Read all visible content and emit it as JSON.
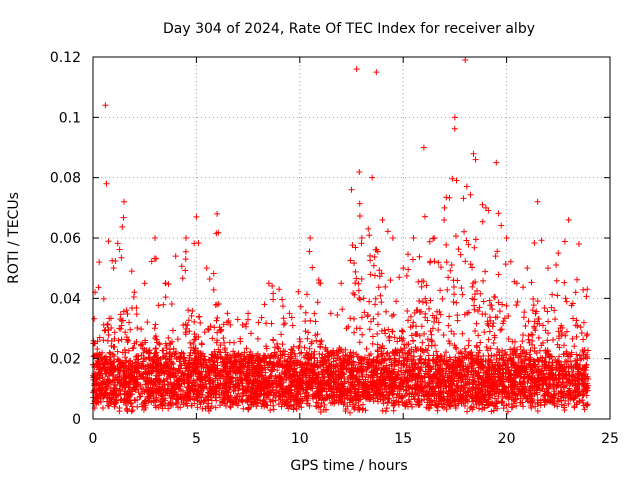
{
  "chart_data": {
    "type": "scatter",
    "title": "Day 304 of 2024, Rate Of TEC Index for receiver alby",
    "xlabel": "GPS time / hours",
    "ylabel": "ROTI / TECUs",
    "xlim": [
      0,
      25
    ],
    "ylim": [
      0,
      0.12
    ],
    "xticks": [
      0,
      5,
      10,
      15,
      20,
      25
    ],
    "yticks": [
      0,
      0.02,
      0.04,
      0.06,
      0.08,
      0.1,
      0.12
    ],
    "xtick_labels": [
      "0",
      "5",
      "10",
      "15",
      "20",
      "25"
    ],
    "ytick_labels": [
      "0",
      "0.02",
      "0.04",
      "0.06",
      "0.08",
      "0.1",
      "0.12"
    ],
    "grid": true,
    "marker": "+",
    "color": "#ff0000",
    "envelope_points": [
      {
        "x": 0.1,
        "y": 0.042
      },
      {
        "x": 0.3,
        "y": 0.052
      },
      {
        "x": 0.6,
        "y": 0.104
      },
      {
        "x": 0.65,
        "y": 0.078
      },
      {
        "x": 1.0,
        "y": 0.05
      },
      {
        "x": 1.5,
        "y": 0.072
      },
      {
        "x": 2.0,
        "y": 0.042
      },
      {
        "x": 2.5,
        "y": 0.045
      },
      {
        "x": 3.0,
        "y": 0.06
      },
      {
        "x": 3.5,
        "y": 0.045
      },
      {
        "x": 4.0,
        "y": 0.054
      },
      {
        "x": 4.5,
        "y": 0.06
      },
      {
        "x": 5.0,
        "y": 0.067
      },
      {
        "x": 5.5,
        "y": 0.05
      },
      {
        "x": 6.0,
        "y": 0.068
      },
      {
        "x": 6.5,
        "y": 0.035
      },
      {
        "x": 7.0,
        "y": 0.033
      },
      {
        "x": 7.5,
        "y": 0.035
      },
      {
        "x": 8.0,
        "y": 0.032
      },
      {
        "x": 8.5,
        "y": 0.045
      },
      {
        "x": 9.0,
        "y": 0.043
      },
      {
        "x": 9.5,
        "y": 0.035
      },
      {
        "x": 10.5,
        "y": 0.06
      },
      {
        "x": 11.0,
        "y": 0.045
      },
      {
        "x": 11.5,
        "y": 0.035
      },
      {
        "x": 12.0,
        "y": 0.045
      },
      {
        "x": 12.5,
        "y": 0.076
      },
      {
        "x": 12.75,
        "y": 0.116
      },
      {
        "x": 13.0,
        "y": 0.06
      },
      {
        "x": 13.5,
        "y": 0.08
      },
      {
        "x": 13.7,
        "y": 0.115
      },
      {
        "x": 14.0,
        "y": 0.066
      },
      {
        "x": 14.5,
        "y": 0.06
      },
      {
        "x": 15.0,
        "y": 0.05
      },
      {
        "x": 15.5,
        "y": 0.06
      },
      {
        "x": 16.0,
        "y": 0.09
      },
      {
        "x": 16.5,
        "y": 0.06
      },
      {
        "x": 17.0,
        "y": 0.07
      },
      {
        "x": 17.5,
        "y": 0.1
      },
      {
        "x": 18.0,
        "y": 0.119
      },
      {
        "x": 18.5,
        "y": 0.086
      },
      {
        "x": 19.0,
        "y": 0.07
      },
      {
        "x": 19.5,
        "y": 0.085
      },
      {
        "x": 20.0,
        "y": 0.06
      },
      {
        "x": 20.5,
        "y": 0.045
      },
      {
        "x": 21.0,
        "y": 0.05
      },
      {
        "x": 21.5,
        "y": 0.072
      },
      {
        "x": 22.0,
        "y": 0.05
      },
      {
        "x": 22.5,
        "y": 0.055
      },
      {
        "x": 23.0,
        "y": 0.066
      },
      {
        "x": 23.5,
        "y": 0.058
      },
      {
        "x": 23.9,
        "y": 0.043
      }
    ]
  }
}
